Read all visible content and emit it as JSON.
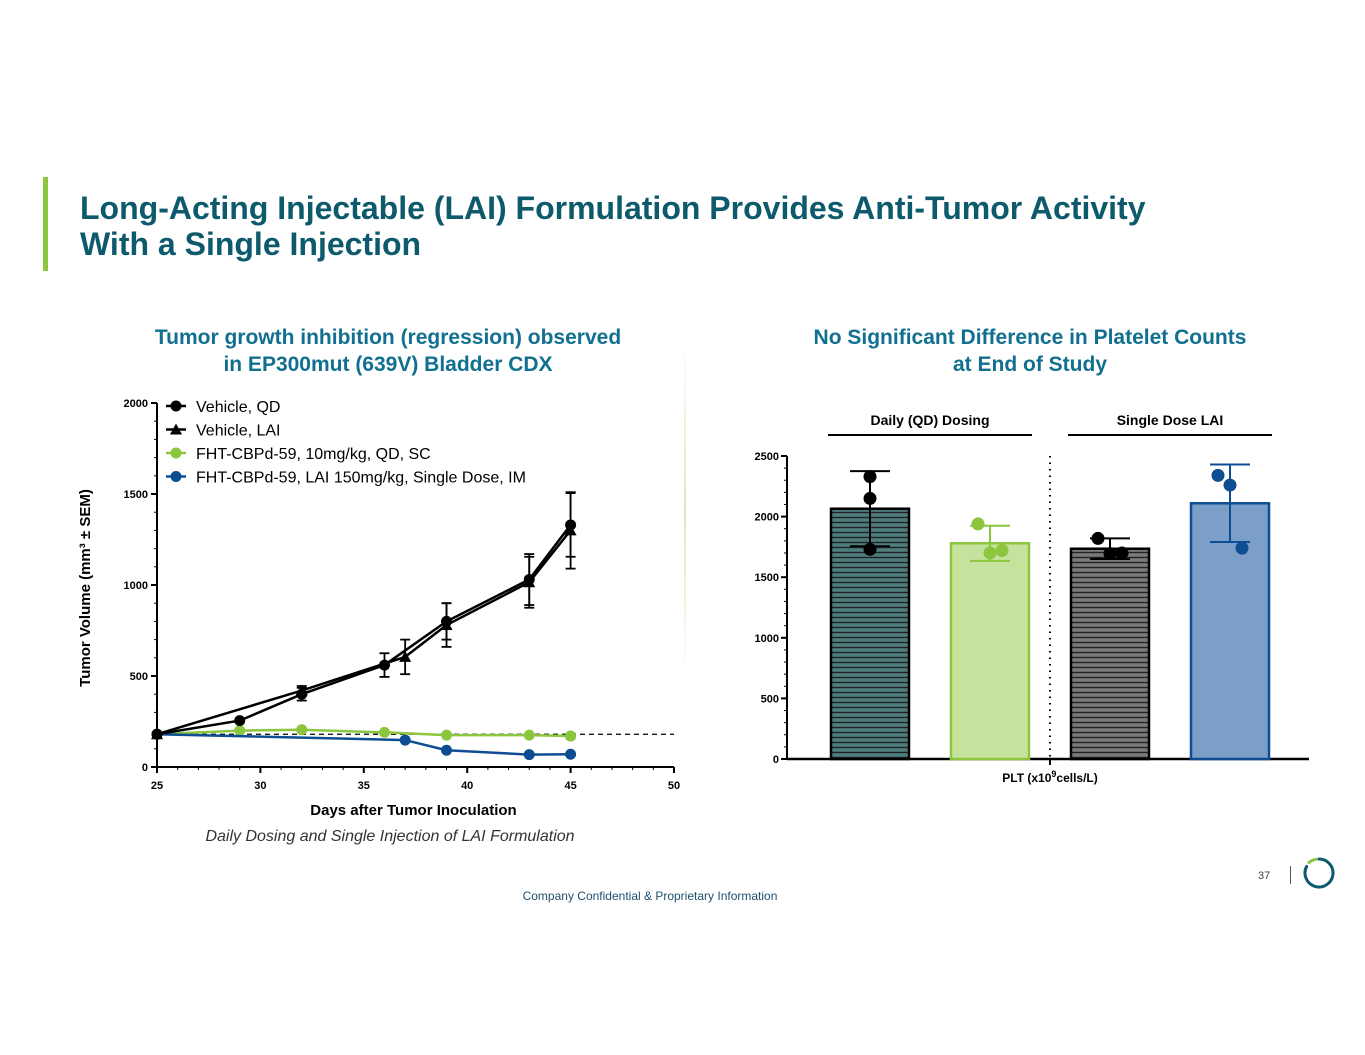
{
  "slide": {
    "title_line1": "Long-Acting Injectable (LAI) Formulation Provides Anti-Tumor Activity",
    "title_line2": "With a Single Injection",
    "footer": "Company Confidential & Proprietary Information",
    "page_number": "37",
    "caption": "Daily Dosing and Single Injection of LAI Formulation",
    "colors": {
      "title": "#0c5a6b",
      "subtitle": "#117090",
      "accent": "#8cc63f",
      "black": "#000000",
      "green": "#8cc63f",
      "blue": "#0e4d92",
      "green_fill": "#c6e39d",
      "blue_fill": "#7b9fc9",
      "hatch_teal": "#4d7d7d",
      "hatch_gray": "#777777",
      "footer": "#1f4e6e"
    },
    "logo_icon": "circular-arc-logo-icon"
  },
  "chart_data": [
    {
      "type": "line",
      "title_line1": "Tumor growth inhibition (regression) observed",
      "title_line2": "in EP300mut (639V) Bladder CDX",
      "xlabel": "Days after Tumor Inoculation",
      "ylabel": "Tumor Volume (mm³ ± SEM)",
      "xlim": [
        25,
        50
      ],
      "ylim": [
        0,
        2000
      ],
      "xticks": [
        25,
        30,
        35,
        40,
        45,
        50
      ],
      "yticks": [
        0,
        500,
        1000,
        1500,
        2000
      ],
      "legend_position": "top-left",
      "reference_line": 180,
      "series": [
        {
          "name": "Vehicle, QD",
          "marker": "circle",
          "color": "#000000",
          "x": [
            25,
            29,
            32,
            36,
            39,
            43,
            45
          ],
          "y": [
            180,
            255,
            400,
            560,
            800,
            1030,
            1330
          ],
          "err": [
            0,
            0,
            35,
            65,
            100,
            140,
            175
          ]
        },
        {
          "name": "Vehicle, LAI",
          "marker": "triangle",
          "color": "#000000",
          "x": [
            25,
            32,
            37,
            39,
            43,
            45
          ],
          "y": [
            180,
            420,
            605,
            780,
            1015,
            1300
          ],
          "err": [
            0,
            25,
            95,
            120,
            140,
            210
          ]
        },
        {
          "name": "FHT-CBPd-59, 10mg/kg, QD, SC",
          "marker": "circle",
          "color": "#8cc63f",
          "x": [
            25,
            29,
            32,
            36,
            39,
            43,
            45
          ],
          "y": [
            180,
            200,
            205,
            190,
            175,
            175,
            170
          ],
          "err": [
            0,
            0,
            0,
            0,
            0,
            0,
            15
          ]
        },
        {
          "name": "FHT-CBPd-59, LAI 150mg/kg, Single Dose, IM",
          "marker": "circle",
          "color": "#0e4d92",
          "x": [
            25,
            37,
            39,
            43,
            45
          ],
          "y": [
            180,
            148,
            92,
            68,
            70
          ],
          "err": [
            0,
            0,
            0,
            0,
            0
          ]
        }
      ]
    },
    {
      "type": "bar",
      "title_line1": "No Significant Difference in Platelet Counts",
      "title_line2": "at End of Study",
      "xlabel_prefix": "PLT (x10",
      "xlabel_sup": "9",
      "xlabel_suffix": "cells/L)",
      "ylim": [
        0,
        2500
      ],
      "yticks": [
        0,
        500,
        1000,
        1500,
        2000,
        2500
      ],
      "groups": [
        {
          "label": "Daily (QD) Dosing",
          "bars": [
            0,
            1
          ]
        },
        {
          "label": "Single Dose LAI",
          "bars": [
            2,
            3
          ]
        }
      ],
      "bars": [
        {
          "name": "Vehicle, QD",
          "value": 2065,
          "sd": 310,
          "points": [
            2330,
            2150,
            1730
          ],
          "style": "hatch-teal"
        },
        {
          "name": "FHT-CBPd-59, 10mg/kg, QD, SC",
          "value": 1780,
          "sd": 145,
          "points": [
            1940,
            1700,
            1720
          ],
          "style": "green"
        },
        {
          "name": "Vehicle, LAI",
          "value": 1735,
          "sd": 85,
          "points": [
            1820,
            1695,
            1700
          ],
          "style": "hatch-gray"
        },
        {
          "name": "FHT-CBPd-59, LAI 150mg/kg, Single Dose, IM",
          "value": 2110,
          "sd": 320,
          "points": [
            2340,
            2260,
            1740
          ],
          "style": "blue"
        }
      ]
    }
  ]
}
